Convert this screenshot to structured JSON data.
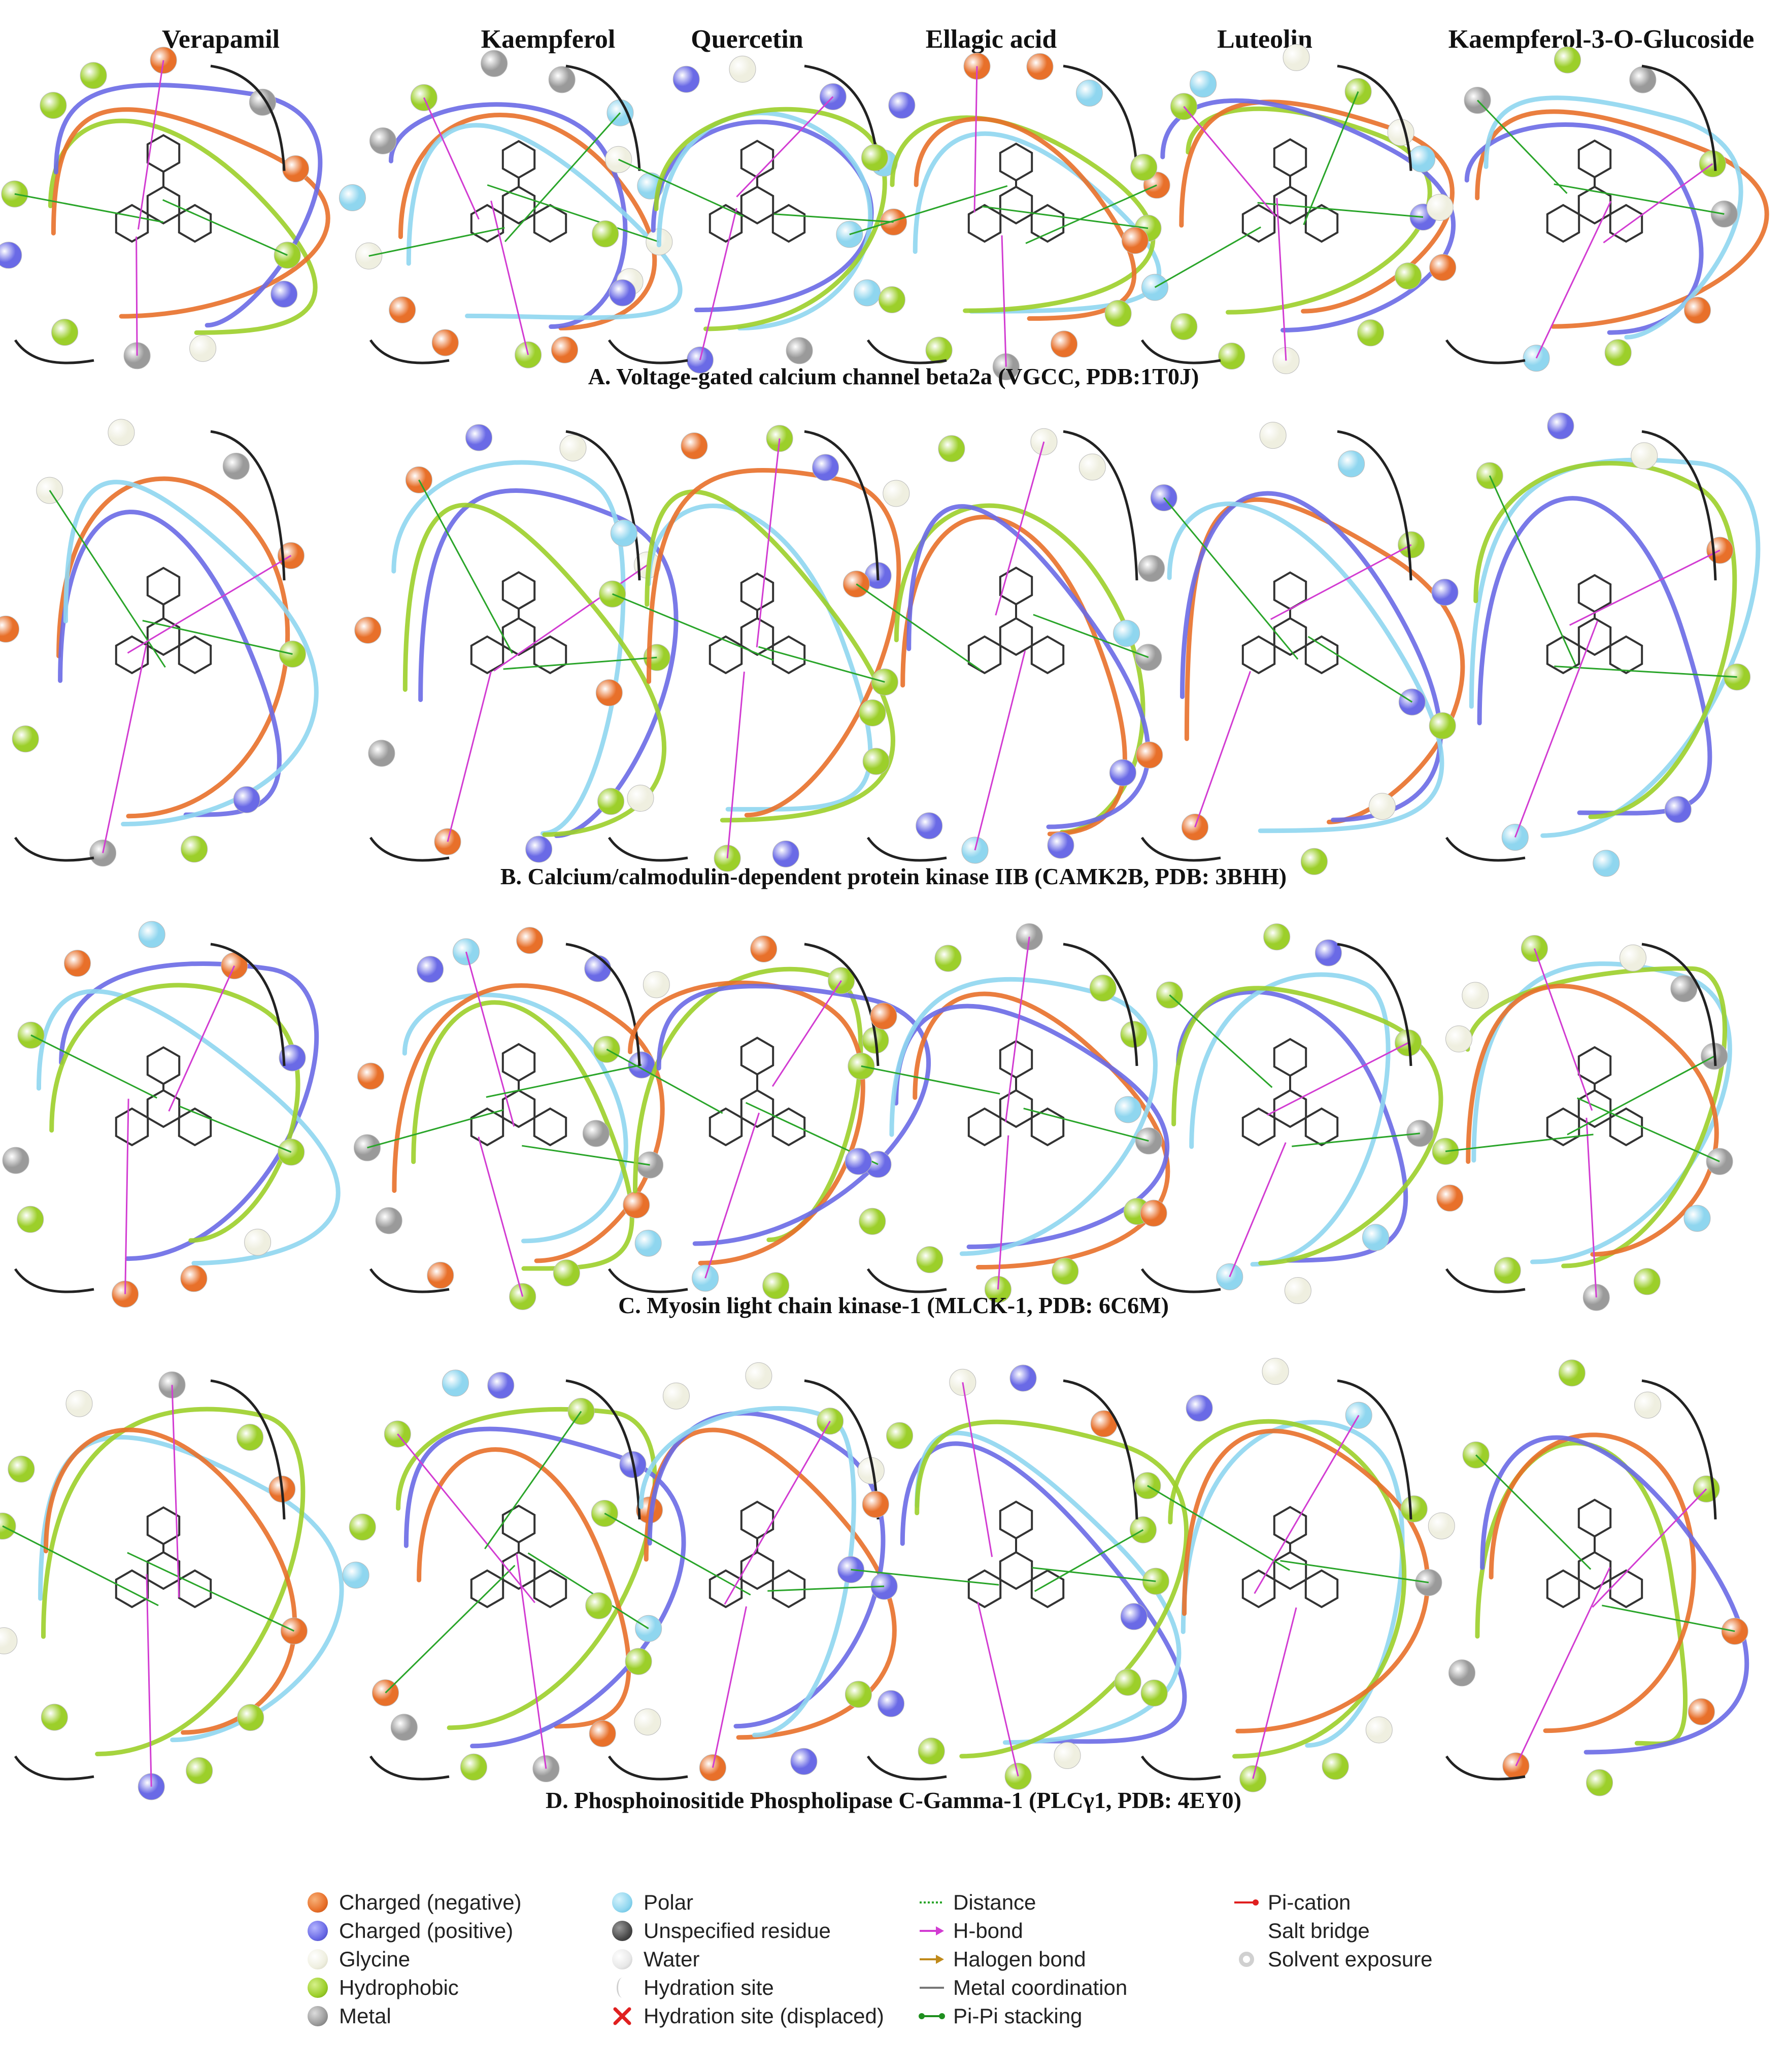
{
  "columns": [
    "Verapamil",
    "Kaempferol",
    "Quercetin",
    "Ellagic acid",
    "Luteolin",
    "Kaempferol-3-O-Glucoside"
  ],
  "panels": [
    "A. Voltage-gated calcium channel beta2a (VGCC, PDB:1T0J)",
    "B. Calcium/calmodulin-dependent protein kinase IIB (CAMK2B, PDB: 3BHH)",
    "C. Myosin light chain kinase-1 (MLCK-1, PDB: 6C6M)",
    "D. Phosphoinositide Phospholipase C-Gamma-1 (PLCγ1, PDB: 4EY0)"
  ],
  "legend": {
    "col1": [
      {
        "label": "Charged (negative)",
        "color": "#e8702a"
      },
      {
        "label": "Charged (positive)",
        "color": "#6a6ae6"
      },
      {
        "label": "Glycine",
        "color": "#efefe0"
      },
      {
        "label": "Hydrophobic",
        "color": "#9ccf2a"
      },
      {
        "label": "Metal",
        "color": "#9a9a9a"
      }
    ],
    "col2": [
      {
        "label": "Polar",
        "color": "#8fd6ef"
      },
      {
        "label": "Unspecified residue",
        "color": "#4a4a4a"
      },
      {
        "label": "Water",
        "color": "#e8e8e8"
      },
      {
        "label": "Hydration site",
        "color": "#ffffff"
      },
      {
        "label": "Hydration site (displaced)",
        "color": "#e02020"
      }
    ],
    "col3": [
      {
        "label": "Distance",
        "color": "#2aa52a"
      },
      {
        "label": "H-bond",
        "color": "#d23cd2"
      },
      {
        "label": "Halogen bond",
        "color": "#c08a1a"
      },
      {
        "label": "Metal coordination",
        "color": "#777777"
      },
      {
        "label": "Pi-Pi stacking",
        "color": "#1f8f1f"
      }
    ],
    "col4": [
      {
        "label": "Pi-cation",
        "color": "#e01f1f"
      },
      {
        "label": "Salt bridge",
        "color": "#7a3aa8"
      },
      {
        "label": "Solvent exposure",
        "color": "#cccccc"
      }
    ]
  }
}
